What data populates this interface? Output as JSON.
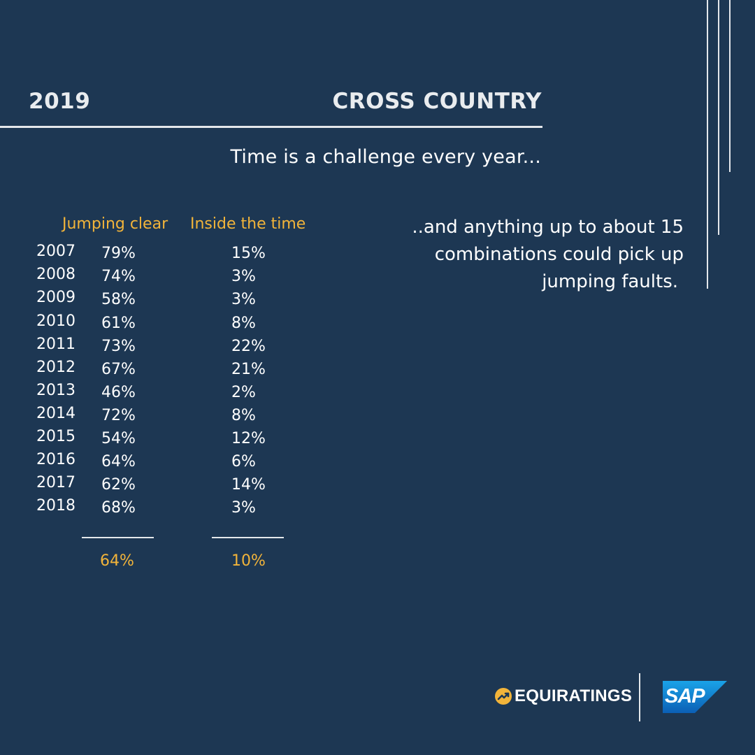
{
  "header": {
    "year": "2019",
    "title": "CROSS COUNTRY"
  },
  "subtitle": "Time is a challenge every year...",
  "table": {
    "col_jumping": "Jumping clear",
    "col_time": "Inside the time",
    "rows": [
      {
        "year": "2007",
        "jumping": "79%",
        "time": "15%"
      },
      {
        "year": "2008",
        "jumping": "74%",
        "time": "3%"
      },
      {
        "year": "2009",
        "jumping": "58%",
        "time": "3%"
      },
      {
        "year": "2010",
        "jumping": "61%",
        "time": "8%"
      },
      {
        "year": "2011",
        "jumping": "73%",
        "time": "22%"
      },
      {
        "year": "2012",
        "jumping": "67%",
        "time": "21%"
      },
      {
        "year": "2013",
        "jumping": "46%",
        "time": "2%"
      },
      {
        "year": "2014",
        "jumping": "72%",
        "time": "8%"
      },
      {
        "year": "2015",
        "jumping": "54%",
        "time": "12%"
      },
      {
        "year": "2016",
        "jumping": "64%",
        "time": "6%"
      },
      {
        "year": "2017",
        "jumping": "62%",
        "time": "14%"
      },
      {
        "year": "2018",
        "jumping": "68%",
        "time": "3%"
      }
    ],
    "total_jumping": "64%",
    "total_time": "10%"
  },
  "note": {
    "line1": "..and anything up to about 15",
    "line2": "combinations could pick up",
    "line3": "jumping faults."
  },
  "logos": {
    "equiratings": "EQUIRATINGS",
    "sap": "SAP"
  },
  "colors": {
    "background": "#1d3753",
    "accent": "#f2b43a",
    "sap_blue": "#1877d1"
  }
}
